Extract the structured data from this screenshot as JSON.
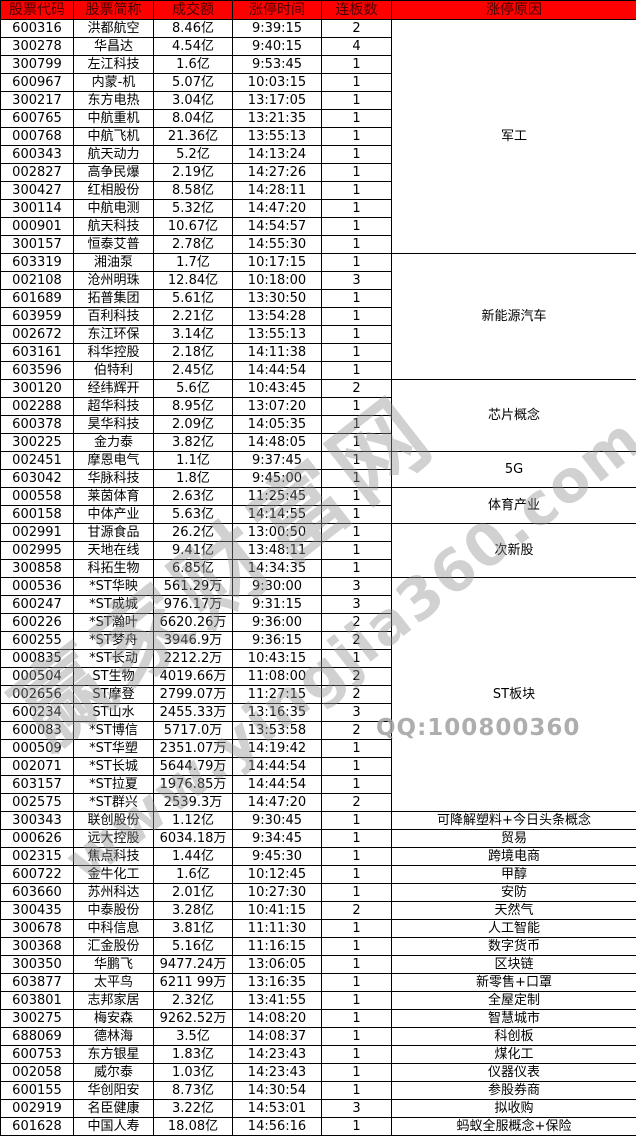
{
  "header": {
    "columns": [
      "股票代码",
      "股票简称",
      "成交额",
      "涨停时间",
      "连板数",
      "涨停原因"
    ]
  },
  "rows": [
    {
      "code": "600316",
      "name": "洪都航空",
      "volume": "8.46亿",
      "time": "9:39:15",
      "boards": "2"
    },
    {
      "code": "300278",
      "name": "华昌达",
      "volume": "4.54亿",
      "time": "9:40:15",
      "boards": "4"
    },
    {
      "code": "300799",
      "name": "左江科技",
      "volume": "1.6亿",
      "time": "9:53:45",
      "boards": "1"
    },
    {
      "code": "600967",
      "name": "内蒙-机",
      "volume": "5.07亿",
      "time": "10:03:15",
      "boards": "1"
    },
    {
      "code": "300217",
      "name": "东方电热",
      "volume": "3.04亿",
      "time": "13:17:05",
      "boards": "1"
    },
    {
      "code": "600765",
      "name": "中航重机",
      "volume": "8.04亿",
      "time": "13:21:35",
      "boards": "1"
    },
    {
      "code": "000768",
      "name": "中航飞机",
      "volume": "21.36亿",
      "time": "13:55:13",
      "boards": "1"
    },
    {
      "code": "600343",
      "name": "航天动力",
      "volume": "5.2亿",
      "time": "14:13:24",
      "boards": "1"
    },
    {
      "code": "002827",
      "name": "高争民爆",
      "volume": "2.19亿",
      "time": "14:27:26",
      "boards": "1"
    },
    {
      "code": "300427",
      "name": "红相股份",
      "volume": "8.58亿",
      "time": "14:28:11",
      "boards": "1"
    },
    {
      "code": "300114",
      "name": "中航电测",
      "volume": "5.32亿",
      "time": "14:47:20",
      "boards": "1"
    },
    {
      "code": "000901",
      "name": "航天科技",
      "volume": "10.67亿",
      "time": "14:54:57",
      "boards": "1"
    },
    {
      "code": "300157",
      "name": "恒泰艾普",
      "volume": "2.78亿",
      "time": "14:55:30",
      "boards": "1"
    },
    {
      "code": "603319",
      "name": "湘油泵",
      "volume": "1.7亿",
      "time": "10:17:15",
      "boards": "1"
    },
    {
      "code": "002108",
      "name": "沧州明珠",
      "volume": "12.84亿",
      "time": "10:18:00",
      "boards": "3"
    },
    {
      "code": "601689",
      "name": "拓普集团",
      "volume": "5.61亿",
      "time": "13:30:50",
      "boards": "1"
    },
    {
      "code": "603959",
      "name": "百利科技",
      "volume": "2.21亿",
      "time": "13:54:28",
      "boards": "1"
    },
    {
      "code": "002672",
      "name": "东江环保",
      "volume": "3.14亿",
      "time": "13:55:13",
      "boards": "1"
    },
    {
      "code": "603161",
      "name": "科华控股",
      "volume": "2.18亿",
      "time": "14:11:38",
      "boards": "1"
    },
    {
      "code": "603596",
      "name": "伯特利",
      "volume": "2.45亿",
      "time": "14:44:54",
      "boards": "1"
    },
    {
      "code": "300120",
      "name": "经纬辉开",
      "volume": "5.6亿",
      "time": "10:43:45",
      "boards": "2"
    },
    {
      "code": "002288",
      "name": "超华科技",
      "volume": "8.95亿",
      "time": "13:07:20",
      "boards": "1"
    },
    {
      "code": "600378",
      "name": "昊华科技",
      "volume": "2.09亿",
      "time": "14:05:35",
      "boards": "1"
    },
    {
      "code": "300225",
      "name": "金力泰",
      "volume": "3.82亿",
      "time": "14:48:05",
      "boards": "1"
    },
    {
      "code": "002451",
      "name": "摩恩电气",
      "volume": "1.1亿",
      "time": "9:37:45",
      "boards": "1"
    },
    {
      "code": "603042",
      "name": "华脉科技",
      "volume": "1.8亿",
      "time": "9:45:00",
      "boards": "1"
    },
    {
      "code": "000558",
      "name": "莱茵体育",
      "volume": "2.63亿",
      "time": "11:25:45",
      "boards": "1"
    },
    {
      "code": "600158",
      "name": "中体产业",
      "volume": "5.63亿",
      "time": "14:14:55",
      "boards": "1"
    },
    {
      "code": "002991",
      "name": "甘源食品",
      "volume": "26.2亿",
      "time": "13:00:50",
      "boards": "1"
    },
    {
      "code": "002995",
      "name": "天地在线",
      "volume": "9.41亿",
      "time": "13:48:11",
      "boards": "1"
    },
    {
      "code": "300858",
      "name": "科拓生物",
      "volume": "6.85亿",
      "time": "14:34:35",
      "boards": "1"
    },
    {
      "code": "000536",
      "name": "*ST华映",
      "volume": "561.29万",
      "time": "9:30:00",
      "boards": "3"
    },
    {
      "code": "600247",
      "name": "*ST成城",
      "volume": "976.17万",
      "time": "9:31:15",
      "boards": "3"
    },
    {
      "code": "600226",
      "name": "*ST瀚叶",
      "volume": "6620.26万",
      "time": "9:36:00",
      "boards": "2"
    },
    {
      "code": "600255",
      "name": "*ST梦舟",
      "volume": "3946.9万",
      "time": "9:36:15",
      "boards": "2"
    },
    {
      "code": "000835",
      "name": "*ST长动",
      "volume": "2212.2万",
      "time": "10:43:15",
      "boards": "1"
    },
    {
      "code": "000504",
      "name": "ST生物",
      "volume": "4019.66万",
      "time": "11:08:00",
      "boards": "2"
    },
    {
      "code": "002656",
      "name": "ST摩登",
      "volume": "2799.07万",
      "time": "11:27:15",
      "boards": "2"
    },
    {
      "code": "600234",
      "name": "ST山水",
      "volume": "2455.33万",
      "time": "13:16:35",
      "boards": "3"
    },
    {
      "code": "600083",
      "name": "*ST博信",
      "volume": "5717.0万",
      "time": "13:53:58",
      "boards": "2"
    },
    {
      "code": "000509",
      "name": "*ST华塑",
      "volume": "2351.07万",
      "time": "14:19:42",
      "boards": "1"
    },
    {
      "code": "002071",
      "name": "*ST长城",
      "volume": "5644.79万",
      "time": "14:44:54",
      "boards": "1"
    },
    {
      "code": "603157",
      "name": "*ST拉夏",
      "volume": "1976.85万",
      "time": "14:44:54",
      "boards": "1"
    },
    {
      "code": "002575",
      "name": "*ST群兴",
      "volume": "2539.3万",
      "time": "14:47:20",
      "boards": "2"
    },
    {
      "code": "300343",
      "name": "联创股份",
      "volume": "1.12亿",
      "time": "9:30:45",
      "boards": "1"
    },
    {
      "code": "000626",
      "name": "远大控股",
      "volume": "6034.18万",
      "time": "9:34:45",
      "boards": "1"
    },
    {
      "code": "002315",
      "name": "焦点科技",
      "volume": "1.44亿",
      "time": "9:45:30",
      "boards": "1"
    },
    {
      "code": "600722",
      "name": "金牛化工",
      "volume": "1.6亿",
      "time": "10:12:45",
      "boards": "1"
    },
    {
      "code": "603660",
      "name": "苏州科达",
      "volume": "2.01亿",
      "time": "10:27:30",
      "boards": "1"
    },
    {
      "code": "300435",
      "name": "中泰股份",
      "volume": "3.28亿",
      "time": "10:41:15",
      "boards": "2"
    },
    {
      "code": "300678",
      "name": "中科信息",
      "volume": "3.81亿",
      "time": "11:11:30",
      "boards": "1"
    },
    {
      "code": "300368",
      "name": "汇金股份",
      "volume": "5.16亿",
      "time": "11:16:15",
      "boards": "1"
    },
    {
      "code": "300350",
      "name": "华鹏飞",
      "volume": "9477.24万",
      "time": "13:06:05",
      "boards": "1"
    },
    {
      "code": "603877",
      "name": "太平鸟",
      "volume": "6211 99万",
      "time": "13:16:35",
      "boards": "1"
    },
    {
      "code": "603801",
      "name": "志邦家居",
      "volume": "2.32亿",
      "time": "13:41:55",
      "boards": "1"
    },
    {
      "code": "300275",
      "name": "梅安森",
      "volume": "9262.52万",
      "time": "14:08:20",
      "boards": "1"
    },
    {
      "code": "688069",
      "name": "德林海",
      "volume": "3.5亿",
      "time": "14:08:37",
      "boards": "1"
    },
    {
      "code": "600753",
      "name": "东方银星",
      "volume": "1.83亿",
      "time": "14:23:43",
      "boards": "1"
    },
    {
      "code": "002058",
      "name": "威尔泰",
      "volume": "1.03亿",
      "time": "14:23:43",
      "boards": "1"
    },
    {
      "code": "600155",
      "name": "华创阳安",
      "volume": "8.73亿",
      "time": "14:30:54",
      "boards": "1"
    },
    {
      "code": "002919",
      "name": "名臣健康",
      "volume": "3.22亿",
      "time": "14:53:01",
      "boards": "3"
    },
    {
      "code": "601628",
      "name": "中国人寿",
      "volume": "18.08亿",
      "time": "14:56:16",
      "boards": "1"
    }
  ],
  "reason_groups": [
    {
      "start": 0,
      "count": 13,
      "label": "军工"
    },
    {
      "start": 13,
      "count": 7,
      "label": "新能源汽车"
    },
    {
      "start": 20,
      "count": 4,
      "label": "芯片概念"
    },
    {
      "start": 24,
      "count": 2,
      "label": "5G"
    },
    {
      "start": 26,
      "count": 2,
      "label": "体育产业"
    },
    {
      "start": 28,
      "count": 3,
      "label": "次新股"
    },
    {
      "start": 31,
      "count": 13,
      "label": "ST板块"
    },
    {
      "start": 44,
      "count": 1,
      "label": "可降解塑料+今日头条概念"
    },
    {
      "start": 45,
      "count": 1,
      "label": "贸易"
    },
    {
      "start": 46,
      "count": 1,
      "label": "跨境电商"
    },
    {
      "start": 47,
      "count": 1,
      "label": "甲醇"
    },
    {
      "start": 48,
      "count": 1,
      "label": "安防"
    },
    {
      "start": 49,
      "count": 1,
      "label": "天然气"
    },
    {
      "start": 50,
      "count": 1,
      "label": "人工智能"
    },
    {
      "start": 51,
      "count": 1,
      "label": "数字货币"
    },
    {
      "start": 52,
      "count": 1,
      "label": "区块链"
    },
    {
      "start": 53,
      "count": 1,
      "label": "新零售+口罩"
    },
    {
      "start": 54,
      "count": 1,
      "label": "全屋定制"
    },
    {
      "start": 55,
      "count": 1,
      "label": "智慧城市"
    },
    {
      "start": 56,
      "count": 1,
      "label": "科创板"
    },
    {
      "start": 57,
      "count": 1,
      "label": "煤化工"
    },
    {
      "start": 58,
      "count": 1,
      "label": "仪器仪表"
    },
    {
      "start": 59,
      "count": 1,
      "label": "参股券商"
    },
    {
      "start": 60,
      "count": 1,
      "label": "拟收购"
    },
    {
      "start": 61,
      "count": 1,
      "label": "蚂蚁全服概念+保险"
    }
  ],
  "watermark": {
    "brand": "赢家财富网",
    "url": "www.yingjia360.com",
    "qq": "QQ:100800360"
  },
  "colors": {
    "header_bg": "#fe0000",
    "header_text": "#4a0000",
    "grid": "#000000",
    "watermark_gray": "#919191"
  }
}
